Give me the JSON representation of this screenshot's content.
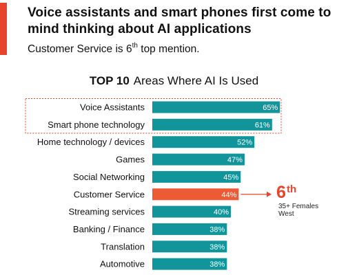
{
  "header": {
    "title": "Voice assistants and smart phones first come to mind thinking about AI applications",
    "subtitle_main": "Customer Service is 6",
    "subtitle_sup": "th",
    "subtitle_rest": " top mention."
  },
  "colors": {
    "accent": "#e8442b",
    "bar": "#12949b",
    "highlight_bar": "#ee5a36",
    "highlight_box": "#e8442b"
  },
  "chart_data": {
    "type": "bar",
    "orientation": "horizontal",
    "title_strong": "TOP 10",
    "title_rest": "Areas Where AI Is Used",
    "categories": [
      "Voice Assistants",
      "Smart phone technology",
      "Home technology / devices",
      "Games",
      "Social Networking",
      "Customer Service",
      "Streaming services",
      "Banking / Finance",
      "Translation",
      "Automotive"
    ],
    "values": [
      65,
      61,
      52,
      47,
      45,
      44,
      40,
      38,
      38,
      38
    ],
    "value_labels": [
      "65%",
      "61%",
      "52%",
      "47%",
      "45%",
      "44%",
      "40%",
      "38%",
      "38%",
      "38%"
    ],
    "unit": "%",
    "highlighted_category": "Customer Service",
    "boxed_categories": [
      "Voice Assistants",
      "Smart phone technology"
    ],
    "grid": false
  },
  "callout": {
    "rank": "6",
    "rank_sup": "th",
    "note_line1": "35+ Females",
    "note_line2": "West"
  }
}
